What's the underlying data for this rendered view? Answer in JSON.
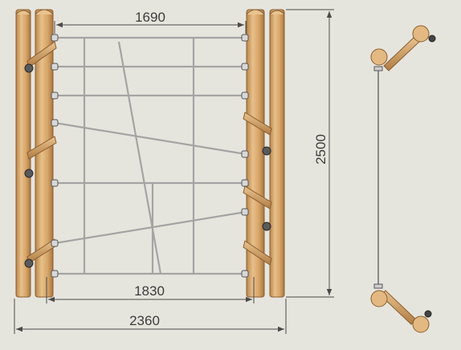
{
  "dimensions": {
    "top_width": "1690",
    "inner_width": "1830",
    "overall_width": "2360",
    "height": "2500"
  },
  "colors": {
    "background": "#e6e5dd",
    "wood_light": "#e3b981",
    "wood_mid": "#d2a064",
    "wood_dark": "#9c6e3a",
    "rope": "#a4a4a4",
    "dimension_line": "#4a4a4a",
    "hardware": "#3a3a3a"
  },
  "icons": [
    "wooden-post-icon",
    "rope-net-icon",
    "rung-peg-icon",
    "side-view-icon"
  ]
}
